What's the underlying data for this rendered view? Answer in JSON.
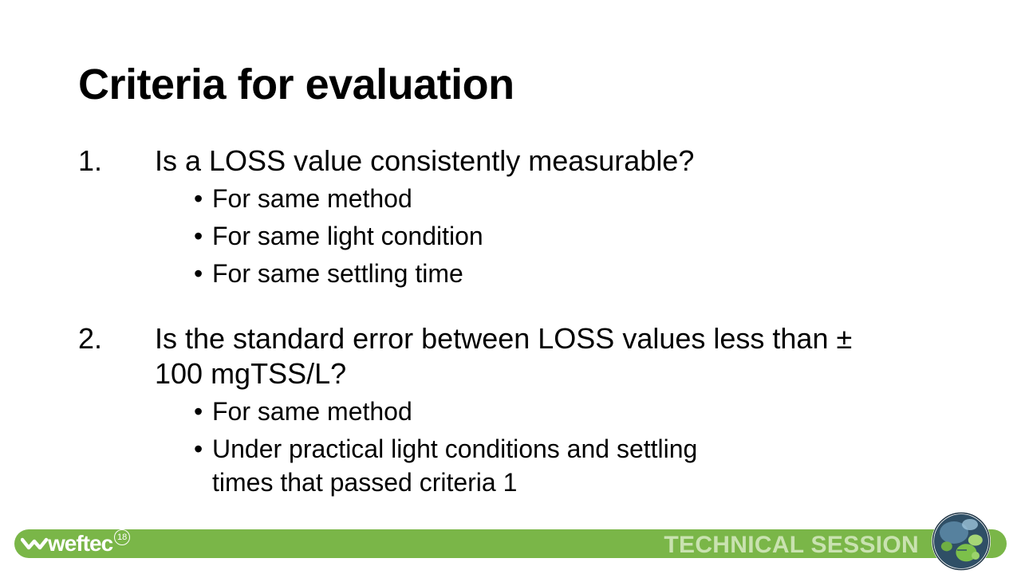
{
  "slide": {
    "title": "Criteria for evaluation",
    "criteria": [
      {
        "number": "1.",
        "text": "Is a LOSS value consistently measurable?",
        "bullets": [
          "For same method",
          "For same light condition",
          "For same settling time"
        ]
      },
      {
        "number": "2.",
        "text": "Is the standard error between LOSS values less than  ± 100 mgTSS/L?",
        "bullets": [
          "For same method",
          "Under practical light conditions and settling times that passed criteria 1"
        ]
      }
    ]
  },
  "footer": {
    "logo_text": "weftec",
    "logo_year": "18",
    "session_label": "TECHNICAL SESSION",
    "bar_color": "#7ab648",
    "logo_icon": "weftec-chevron-icon",
    "badge_icon": "lily-pond-badge-icon"
  }
}
